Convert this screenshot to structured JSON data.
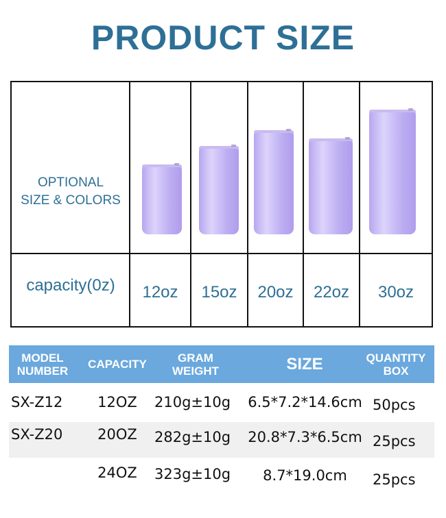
{
  "title": "PRODUCT SIZE",
  "size_chart": {
    "optional_label_line1": "OPTIONAL",
    "optional_label_line2": "SIZE & COLORS",
    "capacity_label": "capacity(0z)",
    "tumbler_color": "#c3b4f3",
    "capacities": [
      "12oz",
      "15oz",
      "20oz",
      "22oz",
      "30oz"
    ]
  },
  "spec_table": {
    "header_color": "#6aa8de",
    "headers": {
      "model": "MODEL\nNUMBER",
      "capacity": "CAPACITY",
      "weight": "GRAM\nWEIGHT",
      "size": "SIZE",
      "quantity": "QUANTITY\nBOX"
    },
    "rows": [
      {
        "model": "SX-Z12",
        "capacity": "12OZ",
        "weight": "210g±10g",
        "size": "6.5*7.2*14.6cm",
        "quantity": "50pcs"
      },
      {
        "model": "SX-Z20",
        "capacity": "20OZ",
        "weight": "282g±10g",
        "size": "20.8*7.3*6.5cm",
        "quantity": "25pcs"
      },
      {
        "model": "",
        "capacity": "24OZ",
        "weight": "323g±10g",
        "size": "8.7*19.0cm",
        "quantity": "25pcs"
      }
    ]
  }
}
